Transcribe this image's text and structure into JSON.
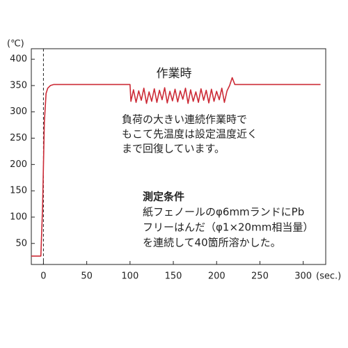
{
  "chart_data": {
    "type": "line",
    "y_unit": "(℃)",
    "x_unit": "(sec.)",
    "annotations": [
      "作業時"
    ],
    "annotation_lines": [
      "負荷の大きい連続作業時で",
      "もこて先温度は設定温度近く",
      "まで回復しています。"
    ],
    "conditions_title": "測定条件",
    "conditions_lines": [
      "紙フェノールのφ6mmランドにPb",
      "フリーはんだ（φ1×20mm相当量）",
      "を連続して40箇所溶かした。"
    ],
    "xlim": [
      -14,
      326
    ],
    "ylim": [
      10,
      420
    ],
    "xticks": [
      0,
      50,
      100,
      150,
      200,
      250,
      300
    ],
    "yticks": [
      50,
      100,
      150,
      200,
      250,
      300,
      350,
      400
    ],
    "reference_line": {
      "x": 0,
      "style": "dashed"
    },
    "series": [
      {
        "color": "#cc2a36",
        "x": [
          -14,
          -3,
          -1,
          1,
          3,
          5,
          8,
          12,
          20,
          100,
          101,
          104,
          107,
          110,
          113,
          116,
          119,
          122,
          125,
          128,
          131,
          134,
          137,
          140,
          143,
          146,
          149,
          152,
          155,
          158,
          161,
          164,
          167,
          170,
          173,
          176,
          179,
          182,
          185,
          188,
          191,
          194,
          197,
          200,
          203,
          206,
          209,
          212,
          215,
          218,
          221,
          225,
          230,
          320
        ],
        "values": [
          26,
          26,
          120,
          280,
          335,
          345,
          350,
          352,
          352,
          352,
          320,
          342,
          318,
          340,
          322,
          345,
          316,
          338,
          320,
          344,
          318,
          341,
          323,
          346,
          317,
          339,
          321,
          343,
          319,
          340,
          324,
          345,
          316,
          342,
          320,
          338,
          318,
          344,
          322,
          341,
          317,
          343,
          320,
          339,
          323,
          345,
          318,
          340,
          350,
          365,
          352,
          352,
          352,
          352
        ]
      }
    ]
  }
}
